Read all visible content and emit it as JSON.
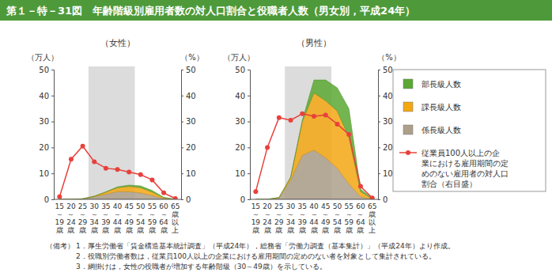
{
  "header": {
    "title": "第１－特－31図　年齢階級別雇用者数の対人口割合と役職者人数（男女別，平成24年）"
  },
  "chart_data": [
    {
      "type": "area",
      "stacked": true,
      "subtitle": "（女性）",
      "ylabel": "（万人）",
      "y2label": "（%）",
      "categories": [
        "15～19歳",
        "20～24歳",
        "25～29歳",
        "30～34歳",
        "35～39歳",
        "40～44歳",
        "45～49歳",
        "50～54歳",
        "55～59歳",
        "60～64歳",
        "65歳以上"
      ],
      "shaded_range": [
        "30～34歳",
        "45～49歳"
      ],
      "ylim": [
        0,
        50
      ],
      "yticks": [
        0,
        10,
        20,
        30,
        40,
        50
      ],
      "y2lim": [
        0,
        50
      ],
      "y2ticks": [
        0,
        10,
        20,
        30,
        40,
        50
      ],
      "series": [
        {
          "name": "係長級人数",
          "color": "#ad9f8a",
          "values": [
            0,
            0,
            0.2,
            1,
            2,
            3,
            3,
            2.5,
            1.5,
            0.3,
            0
          ]
        },
        {
          "name": "課長級人数",
          "color": "#f3a712",
          "values": [
            0,
            0,
            0,
            0.2,
            0.8,
            1.5,
            2,
            2,
            1.3,
            0.3,
            0
          ]
        },
        {
          "name": "部長級人数",
          "color": "#5aa832",
          "values": [
            0,
            0,
            0,
            0,
            0.1,
            0.3,
            0.5,
            0.7,
            0.6,
            0.2,
            0
          ]
        },
        {
          "name": "従業員100人以上の企業における雇用期間の定めのない雇用者の対人口割合（右目盛）",
          "type": "line",
          "axis": "y2",
          "color": "#e8413c",
          "marker": "circle",
          "values": [
            1,
            15.5,
            20.5,
            14.5,
            12,
            11.5,
            10.5,
            9.5,
            7.5,
            2.5,
            0.3
          ]
        }
      ]
    },
    {
      "type": "area",
      "stacked": true,
      "subtitle": "（男性）",
      "legend": "right",
      "ylabel": "（万人）",
      "y2label": "（%）",
      "categories": [
        "15～19歳",
        "20～24歳",
        "25～29歳",
        "30～34歳",
        "35～39歳",
        "40～44歳",
        "45～49歳",
        "50～54歳",
        "55～59歳",
        "60～64歳",
        "65歳以上"
      ],
      "shaded_range": [
        "30～34歳",
        "45～49歳"
      ],
      "ylim": [
        0,
        50
      ],
      "yticks": [
        0,
        10,
        20,
        30,
        40,
        50
      ],
      "y2lim": [
        0,
        50
      ],
      "y2ticks": [
        0,
        10,
        20,
        30,
        40,
        50
      ],
      "series": [
        {
          "name": "係長級人数",
          "color": "#ad9f8a",
          "values": [
            0,
            0,
            0.5,
            7.5,
            17,
            19,
            16,
            12,
            6,
            1,
            0.1
          ]
        },
        {
          "name": "課長級人数",
          "color": "#f3a712",
          "values": [
            0,
            0,
            0.2,
            1,
            13,
            22,
            22,
            22,
            18,
            2,
            0.1
          ]
        },
        {
          "name": "部長級人数",
          "color": "#5aa832",
          "values": [
            0,
            0,
            0,
            0,
            0.5,
            5,
            8,
            9,
            11,
            1,
            0.1
          ]
        },
        {
          "name": "従業員100人以上の企業における雇用期間の定めのない雇用者の対人口割合（右目盛）",
          "type": "line",
          "axis": "y2",
          "color": "#e8413c",
          "marker": "circle",
          "values": [
            3,
            20,
            31.5,
            30.5,
            33,
            32,
            32.5,
            29,
            25,
            5,
            0.5
          ]
        }
      ]
    }
  ],
  "notes": {
    "label": "（備考）",
    "items": [
      "1．厚生労働省「賃金構造基本統計調査」（平成24年），総務省「労働力調査（基本集計）」（平成24年）より作成。",
      "2．役職別労働者数は，従業員100人以上の企業における雇用期間の定めのない者を対象として集計されている。",
      "3．網掛けは，女性の役職者が増加する年齢階級（30～49歳）を示している。"
    ]
  }
}
